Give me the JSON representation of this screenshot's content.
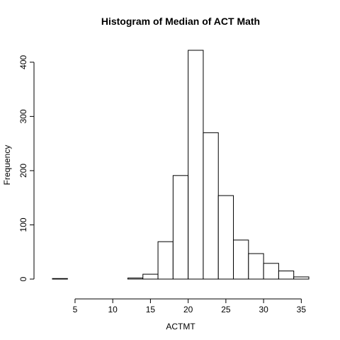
{
  "chart_data": {
    "type": "bar",
    "title": "Histogram of Median of ACT Math",
    "xlabel": "ACTMT",
    "ylabel": "Frequency",
    "bin_edges": [
      2,
      4,
      6,
      8,
      10,
      12,
      14,
      16,
      18,
      20,
      22,
      24,
      26,
      28,
      30,
      32,
      34,
      36
    ],
    "values": [
      1,
      0,
      0,
      0,
      0,
      2,
      9,
      69,
      191,
      422,
      270,
      154,
      72,
      47,
      29,
      15,
      4
    ],
    "x_ticks": [
      5,
      10,
      15,
      20,
      25,
      30,
      35
    ],
    "y_ticks": [
      0,
      100,
      200,
      300,
      400
    ],
    "xlim": [
      2,
      36
    ],
    "ylim": [
      0,
      422
    ],
    "grid": false,
    "legend": "none"
  }
}
